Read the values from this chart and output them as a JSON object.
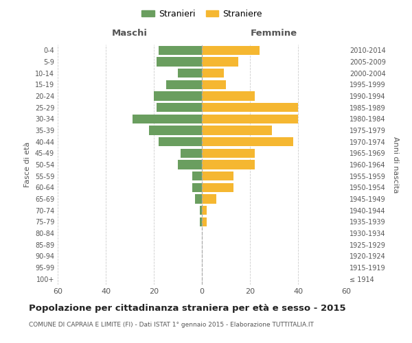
{
  "age_groups": [
    "100+",
    "95-99",
    "90-94",
    "85-89",
    "80-84",
    "75-79",
    "70-74",
    "65-69",
    "60-64",
    "55-59",
    "50-54",
    "45-49",
    "40-44",
    "35-39",
    "30-34",
    "25-29",
    "20-24",
    "15-19",
    "10-14",
    "5-9",
    "0-4"
  ],
  "birth_years": [
    "≤ 1914",
    "1915-1919",
    "1920-1924",
    "1925-1929",
    "1930-1934",
    "1935-1939",
    "1940-1944",
    "1945-1949",
    "1950-1954",
    "1955-1959",
    "1960-1964",
    "1965-1969",
    "1970-1974",
    "1975-1979",
    "1980-1984",
    "1985-1989",
    "1990-1994",
    "1995-1999",
    "2000-2004",
    "2005-2009",
    "2010-2014"
  ],
  "maschi": [
    0,
    0,
    0,
    0,
    0,
    1,
    1,
    3,
    4,
    4,
    10,
    9,
    18,
    22,
    29,
    19,
    20,
    15,
    10,
    19,
    18
  ],
  "femmine": [
    0,
    0,
    0,
    0,
    0,
    2,
    2,
    6,
    13,
    13,
    22,
    22,
    38,
    29,
    40,
    40,
    22,
    10,
    9,
    15,
    24
  ],
  "male_color": "#6a9e5f",
  "female_color": "#f5b731",
  "background_color": "#ffffff",
  "grid_color": "#cccccc",
  "title": "Popolazione per cittadinanza straniera per età e sesso - 2015",
  "subtitle": "COMUNE DI CAPRAIA E LIMITE (FI) - Dati ISTAT 1° gennaio 2015 - Elaborazione TUTTITALIA.IT",
  "header_left": "Maschi",
  "header_right": "Femmine",
  "ylabel_left": "Fasce di età",
  "ylabel_right": "Anni di nascita",
  "legend_male": "Stranieri",
  "legend_female": "Straniere",
  "xlim": 60
}
